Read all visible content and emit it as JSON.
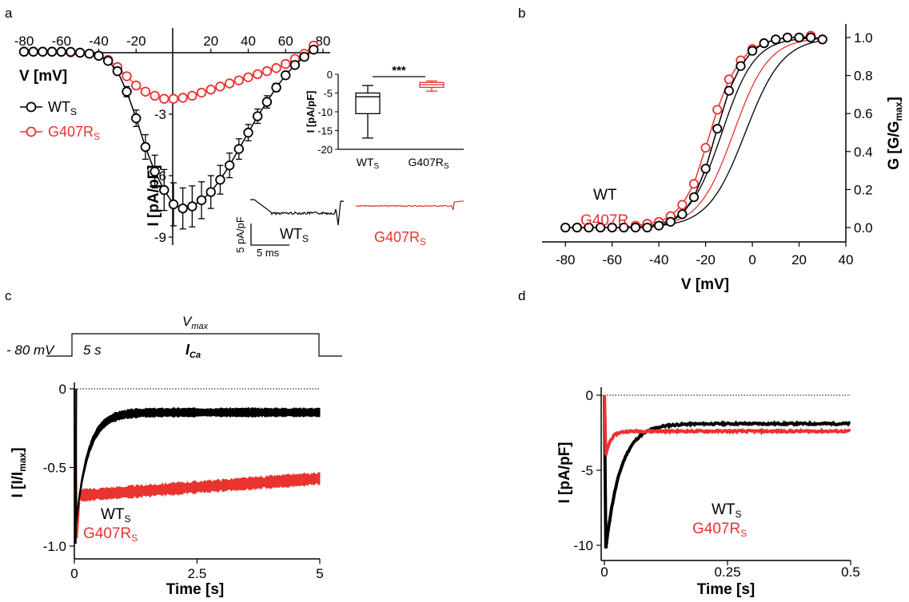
{
  "colors": {
    "wt": "#000000",
    "mut": "#e8332f"
  },
  "panels": {
    "a": {
      "letter": "a",
      "xlabel": "V [mV]",
      "ylabel": "I [pA/pF]",
      "x_ticks": [
        "-80",
        "-60",
        "-40",
        "-20",
        "20",
        "40",
        "60",
        "80"
      ],
      "y_ticks": [
        "-3",
        "-6",
        "-9"
      ],
      "legend": {
        "wt_main": "WT",
        "wt_sub": "S",
        "mut_main": "G407R",
        "mut_sub": "S"
      },
      "inset": {
        "ylabel": "I [pA/pF]",
        "y_ticks": [
          "0",
          "-5",
          "-10",
          "-15",
          "-20"
        ],
        "cat1_main": "WT",
        "cat1_sub": "S",
        "cat2_main": "G407R",
        "cat2_sub": "S",
        "significance": "***"
      },
      "traces": {
        "wt_main": "WT",
        "wt_sub": "S",
        "mut_main": "G407R",
        "mut_sub": "S",
        "scale_y": "5 pA/pF",
        "scale_x": "5 ms"
      }
    },
    "b": {
      "letter": "b",
      "xlabel": "V [mV]",
      "ylabel_main": "G [G/G",
      "ylabel_sub": "max",
      "ylabel_end": "]",
      "x_ticks": [
        "-80",
        "-60",
        "-40",
        "-20",
        "0",
        "20",
        "40"
      ],
      "y_ticks": [
        "0.0",
        "0.2",
        "0.4",
        "0.6",
        "0.8",
        "1.0"
      ],
      "legend": {
        "wt": "WT",
        "mut": "G407R"
      }
    },
    "c": {
      "letter": "c",
      "protocol": {
        "holding": "- 80 mV",
        "duration": "5 s",
        "vmax_main": "V",
        "vmax_sub": "max",
        "ica_main": "I",
        "ica_sub": "Ca"
      },
      "xlabel": "Time [s]",
      "ylabel_main": "I [I/I",
      "ylabel_sub": "max",
      "ylabel_end": "]",
      "x_ticks": [
        "0",
        "2.5",
        "5"
      ],
      "y_ticks": [
        "0",
        "-0.5",
        "-1.0"
      ],
      "legend": {
        "wt_main": "WT",
        "wt_sub": "S",
        "mut_main": "G407R",
        "mut_sub": "S"
      }
    },
    "d": {
      "letter": "d",
      "xlabel": "Time [s]",
      "ylabel": "I [pA/pF]",
      "x_ticks": [
        "0",
        "0.25",
        "0.5"
      ],
      "y_ticks": [
        "0",
        "-5",
        "-10"
      ],
      "legend": {
        "wt_main": "WT",
        "wt_sub": "S",
        "mut_main": "G407R",
        "mut_sub": "S"
      }
    }
  },
  "chart_data": [
    {
      "panel": "a",
      "type": "line",
      "xlim": [
        -80,
        80
      ],
      "ylim": [
        -10,
        0.6
      ],
      "x": [
        -80,
        -75,
        -70,
        -65,
        -60,
        -55,
        -50,
        -45,
        -40,
        -35,
        -30,
        -25,
        -20,
        -15,
        -10,
        -5,
        0,
        5,
        10,
        15,
        20,
        25,
        30,
        35,
        40,
        45,
        50,
        55,
        60,
        65,
        70,
        75
      ],
      "series": [
        {
          "name": "WTS",
          "values": [
            0.05,
            0.05,
            0.05,
            0.05,
            0.05,
            0.04,
            0.0,
            -0.05,
            -0.15,
            -0.4,
            -0.9,
            -1.9,
            -3.2,
            -4.6,
            -5.8,
            -6.7,
            -7.4,
            -7.6,
            -7.5,
            -7.2,
            -6.8,
            -6.2,
            -5.5,
            -4.7,
            -3.9,
            -3.1,
            -2.4,
            -1.7,
            -1.1,
            -0.6,
            -0.2,
            0.15
          ]
        },
        {
          "name": "G407RS",
          "values": [
            0.05,
            0.05,
            0.05,
            0.05,
            0.04,
            0.02,
            0.0,
            -0.05,
            -0.15,
            -0.35,
            -0.7,
            -1.15,
            -1.6,
            -1.9,
            -2.1,
            -2.25,
            -2.25,
            -2.2,
            -2.1,
            -1.95,
            -1.8,
            -1.65,
            -1.5,
            -1.35,
            -1.2,
            -1.05,
            -0.9,
            -0.75,
            -0.55,
            -0.3,
            -0.05,
            0.35
          ]
        }
      ],
      "error_bars_wt": [
        0.02,
        0.02,
        0.02,
        0.02,
        0.02,
        0.02,
        0.03,
        0.04,
        0.05,
        0.1,
        0.15,
        0.25,
        0.4,
        0.6,
        0.8,
        1.0,
        1.05,
        1.0,
        1.0,
        0.9,
        0.8,
        0.7,
        0.6,
        0.5,
        0.4,
        0.35,
        0.3,
        0.2,
        0.15,
        0.1,
        0.08,
        0.1
      ],
      "inset": {
        "type": "box",
        "ylim": [
          -20,
          0
        ],
        "categories": [
          "WTS",
          "G407RS"
        ],
        "boxes": [
          {
            "whisker_min": -17,
            "q1": -10.5,
            "median": -6,
            "q3": -5,
            "whisker_max": -3
          },
          {
            "whisker_min": -4.5,
            "q1": -3.5,
            "median": -2.8,
            "q3": -2.2,
            "whisker_max": -1.8
          }
        ]
      }
    },
    {
      "panel": "b",
      "type": "line",
      "xlim": [
        -90,
        40
      ],
      "ylim": [
        -0.1,
        1.08
      ],
      "x": [
        -80,
        -75,
        -70,
        -65,
        -60,
        -55,
        -50,
        -45,
        -40,
        -35,
        -30,
        -25,
        -20,
        -15,
        -10,
        -5,
        0,
        5,
        10,
        15,
        20,
        25,
        30
      ],
      "series": [
        {
          "name": "WT",
          "values": [
            0,
            0,
            0,
            0,
            0,
            0,
            0,
            0,
            0.01,
            0.03,
            0.07,
            0.16,
            0.31,
            0.52,
            0.72,
            0.85,
            0.93,
            0.97,
            0.99,
            1.0,
            1.0,
            1.0,
            0.99
          ]
        },
        {
          "name": "G407R",
          "values": [
            0,
            0,
            0,
            0,
            0,
            0,
            0.01,
            0.02,
            0.03,
            0.06,
            0.12,
            0.23,
            0.42,
            0.62,
            0.78,
            0.88,
            0.94,
            0.97,
            0.99,
            1.0,
            1.0,
            1.01,
            0.99
          ]
        }
      ]
    },
    {
      "panel": "c",
      "type": "line",
      "xlim": [
        0,
        5
      ],
      "ylim": [
        -1.05,
        0.05
      ],
      "series": [
        {
          "name": "WTS",
          "baseline": -0.15,
          "peak": -1.0,
          "tau": 0.25
        },
        {
          "name": "G407RS",
          "start": -0.68,
          "end": -0.57,
          "noise": 0.035
        }
      ]
    },
    {
      "panel": "d",
      "type": "line",
      "xlim": [
        0,
        0.5
      ],
      "ylim": [
        -11,
        0.5
      ],
      "series": [
        {
          "name": "WTS",
          "peak": -10.2,
          "peak_time": 0.003,
          "plateau": -1.9
        },
        {
          "name": "G407RS",
          "peak": -4.0,
          "peak_time": 0.003,
          "plateau": -2.4
        }
      ]
    }
  ]
}
